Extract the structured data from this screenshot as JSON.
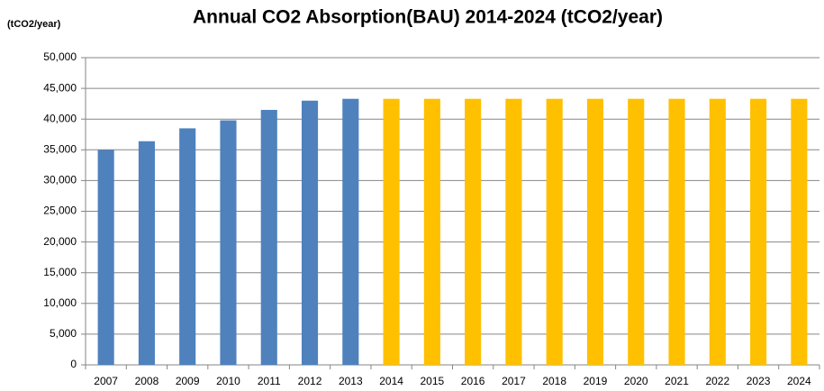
{
  "chart_data": {
    "type": "bar",
    "title": "Annual CO2 Absorption(BAU) 2014-2024   (tCO2/year)",
    "ylabel": "(tCO2/year)",
    "categories": [
      "2007",
      "2008",
      "2009",
      "2010",
      "2011",
      "2012",
      "2013",
      "2014",
      "2015",
      "2016",
      "2017",
      "2018",
      "2019",
      "2020",
      "2021",
      "2022",
      "2023",
      "2024"
    ],
    "values": [
      35000,
      36400,
      38500,
      39800,
      41500,
      43000,
      43300,
      43300,
      43300,
      43300,
      43300,
      43300,
      43300,
      43300,
      43300,
      43300,
      43300,
      43300
    ],
    "colors": [
      "#4f81bd",
      "#4f81bd",
      "#4f81bd",
      "#4f81bd",
      "#4f81bd",
      "#4f81bd",
      "#4f81bd",
      "#ffc000",
      "#ffc000",
      "#ffc000",
      "#ffc000",
      "#ffc000",
      "#ffc000",
      "#ffc000",
      "#ffc000",
      "#ffc000",
      "#ffc000",
      "#ffc000"
    ],
    "ylim": [
      0,
      50000
    ],
    "yticks": [
      0,
      {
        "value": 5000,
        "label": "5,000"
      },
      {
        "value": 10000,
        "label": "10,000"
      },
      {
        "value": 15000,
        "label": "15,000"
      },
      {
        "value": 20000,
        "label": "20,000"
      },
      {
        "value": 25000,
        "label": "25,000"
      },
      {
        "value": 30000,
        "label": "30,000"
      },
      {
        "value": 35000,
        "label": "35,000"
      },
      {
        "value": 40000,
        "label": "40,000"
      },
      {
        "value": 45000,
        "label": "45,000"
      },
      {
        "value": 50000,
        "label": "50,000"
      }
    ],
    "grid": true
  }
}
